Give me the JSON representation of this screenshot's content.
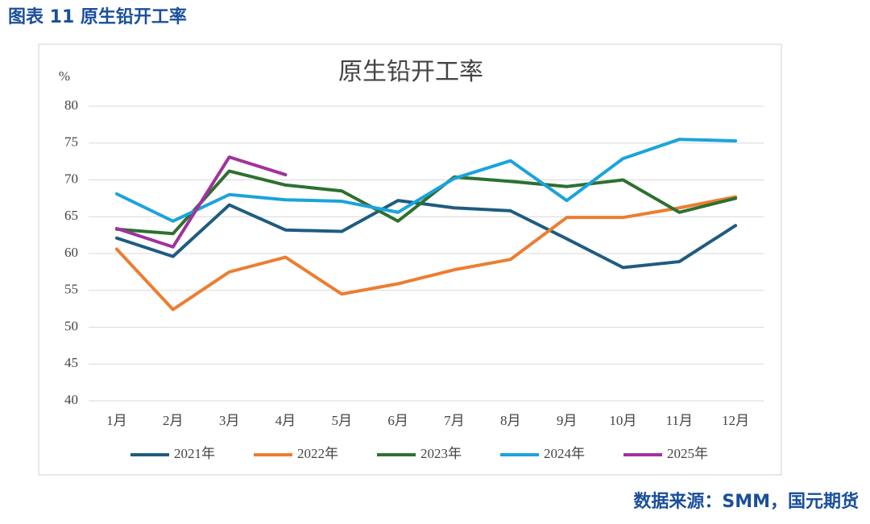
{
  "header": "图表 11 原生铅开工率",
  "source": "数据来源：SMM，国元期货",
  "chart_data": {
    "type": "line",
    "title": "原生铅开工率",
    "y_axis_label": "%",
    "categories": [
      "1月",
      "2月",
      "3月",
      "4月",
      "5月",
      "6月",
      "7月",
      "8月",
      "9月",
      "10月",
      "11月",
      "12月"
    ],
    "series": [
      {
        "name": "2021年",
        "color": "#1f5c80",
        "values": [
          62.1,
          59.6,
          66.6,
          63.2,
          63.0,
          67.2,
          66.2,
          65.8,
          62.0,
          58.1,
          58.9,
          63.8
        ]
      },
      {
        "name": "2022年",
        "color": "#ed7d31",
        "values": [
          60.6,
          52.4,
          57.5,
          59.5,
          54.5,
          55.9,
          57.8,
          59.2,
          64.9,
          64.9,
          66.2,
          67.7
        ]
      },
      {
        "name": "2023年",
        "color": "#2e7030",
        "values": [
          63.3,
          62.7,
          71.2,
          69.3,
          68.5,
          64.4,
          70.4,
          69.8,
          69.1,
          70.0,
          65.6,
          67.5
        ]
      },
      {
        "name": "2024年",
        "color": "#1ba3dc",
        "values": [
          68.1,
          64.4,
          68.0,
          67.3,
          67.1,
          65.6,
          70.2,
          72.6,
          67.2,
          72.9,
          75.5,
          75.3
        ]
      },
      {
        "name": "2025年",
        "color": "#a0329e",
        "values": [
          63.4,
          60.9,
          73.1,
          70.7,
          null,
          null,
          null,
          null,
          null,
          null,
          null,
          null
        ]
      }
    ],
    "ylim": [
      40,
      80
    ],
    "yticks": [
      40,
      45,
      50,
      55,
      60,
      65,
      70,
      75,
      80
    ],
    "grid": true,
    "legend": "bottom"
  }
}
